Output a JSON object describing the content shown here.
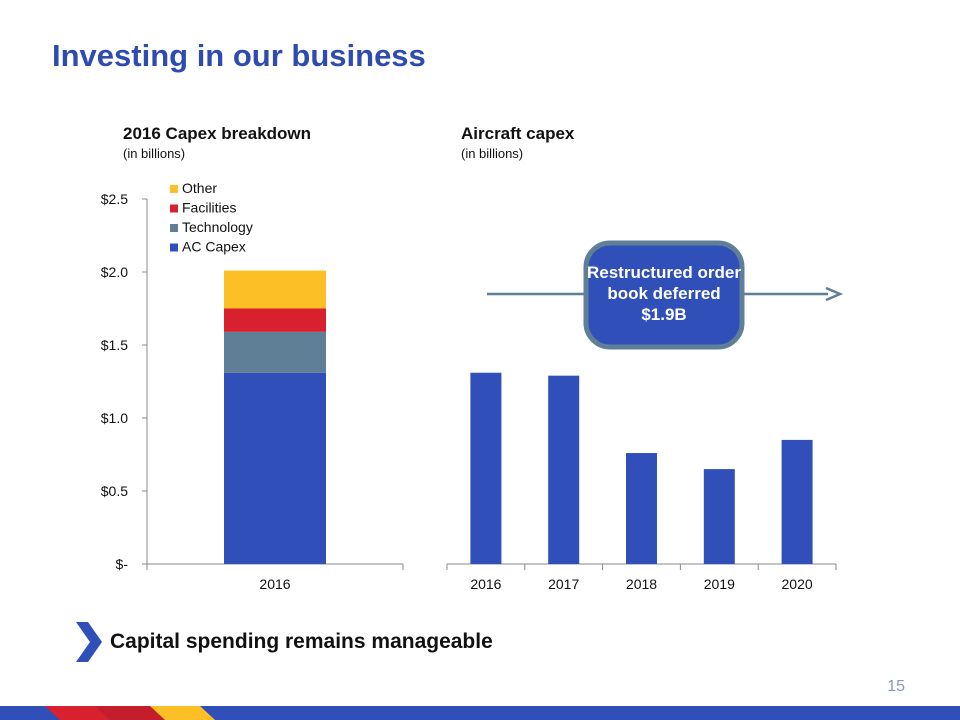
{
  "slide": {
    "title": "Investing in our business",
    "takeaway": "Capital spending remains manageable",
    "page_number": "15"
  },
  "colors": {
    "title": "#2E4CB0",
    "ac_capex": "#304FB8",
    "technology": "#5E7F95",
    "facilities": "#D9202F",
    "other": "#FCBF25",
    "arrow": "#5E7F95",
    "callout_fill": "#304FB8",
    "callout_border": "#5E7F95"
  },
  "callout": {
    "text": "Restructured order book deferred $1.9B"
  },
  "chart_data": [
    {
      "type": "bar",
      "stacked": true,
      "title": "2016 Capex breakdown",
      "subtitle": "(in billions)",
      "categories": [
        "2016"
      ],
      "series": [
        {
          "name": "AC Capex",
          "values": [
            1.31
          ],
          "color": "#304FB8"
        },
        {
          "name": "Technology",
          "values": [
            0.28
          ],
          "color": "#5E7F95"
        },
        {
          "name": "Facilities",
          "values": [
            0.16
          ],
          "color": "#D9202F"
        },
        {
          "name": "Other",
          "values": [
            0.26
          ],
          "color": "#FCBF25"
        }
      ],
      "legend_order": [
        "Other",
        "Facilities",
        "Technology",
        "AC Capex"
      ],
      "legend_position": "top-left",
      "ylim": [
        0,
        2.5
      ],
      "yticks": [
        {
          "value": 0,
          "label": "$-"
        },
        {
          "value": 0.5,
          "label": "$0.5"
        },
        {
          "value": 1.0,
          "label": "$1.0"
        },
        {
          "value": 1.5,
          "label": "$1.5"
        },
        {
          "value": 2.0,
          "label": "$2.0"
        },
        {
          "value": 2.5,
          "label": "$2.5"
        }
      ],
      "grid": false
    },
    {
      "type": "bar",
      "title": "Aircraft capex",
      "subtitle": "(in billions)",
      "categories": [
        "2016",
        "2017",
        "2018",
        "2019",
        "2020"
      ],
      "series": [
        {
          "values": [
            1.31,
            1.29,
            0.76,
            0.65,
            0.85
          ],
          "color": "#304FB8"
        }
      ],
      "ylim": [
        0,
        2.5
      ],
      "grid": false
    }
  ]
}
